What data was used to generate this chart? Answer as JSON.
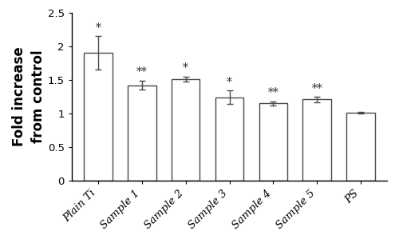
{
  "categories": [
    "Plain Ti",
    "Sample 1",
    "Sample 2",
    "Sample 3",
    "Sample 4",
    "Sample 5",
    "PS"
  ],
  "values": [
    1.9,
    1.42,
    1.51,
    1.24,
    1.15,
    1.21,
    1.01
  ],
  "errors": [
    0.25,
    0.07,
    0.04,
    0.1,
    0.03,
    0.04,
    0.015
  ],
  "significance": [
    "*",
    "**",
    "*",
    "*",
    "**",
    "**",
    ""
  ],
  "bar_color": "#ffffff",
  "bar_edgecolor": "#4a4a4a",
  "ylabel": "Fold increase\nfrom control",
  "ylim": [
    0,
    2.5
  ],
  "yticks": [
    0,
    0.5,
    1.0,
    1.5,
    2.0,
    2.5
  ],
  "ytick_labels": [
    "0",
    "0.5",
    "1",
    "1.5",
    "2",
    "2.5"
  ],
  "bar_width": 0.65,
  "ylabel_fontsize": 12,
  "tick_fontsize": 9.5,
  "sig_fontsize": 10,
  "xlabel_rotation": 45,
  "background_color": "#ffffff"
}
